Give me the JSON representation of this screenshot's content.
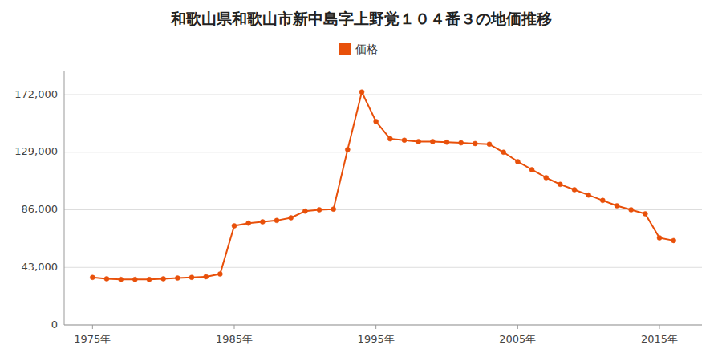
{
  "chart_data": {
    "type": "line",
    "title": "和歌山県和歌山市新中島字上野覚１０４番３の地価推移",
    "x": [
      1975,
      1976,
      1977,
      1978,
      1979,
      1980,
      1981,
      1982,
      1983,
      1984,
      1985,
      1986,
      1987,
      1988,
      1989,
      1990,
      1991,
      1992,
      1993,
      1994,
      1995,
      1996,
      1997,
      1998,
      1999,
      2000,
      2001,
      2002,
      2003,
      2004,
      2005,
      2006,
      2007,
      2008,
      2009,
      2010,
      2011,
      2012,
      2013,
      2014,
      2015,
      2016
    ],
    "series": [
      {
        "name": "価格",
        "color": "#e8500a",
        "marker": "circle",
        "values": [
          35500,
          34500,
          34000,
          34000,
          34000,
          34500,
          35000,
          35500,
          36000,
          38000,
          74000,
          76000,
          77000,
          78000,
          80000,
          85000,
          86000,
          86500,
          131000,
          174000,
          152000,
          139000,
          138000,
          137000,
          137000,
          136500,
          136000,
          135500,
          135000,
          129000,
          122000,
          116000,
          110000,
          105000,
          101000,
          97000,
          93000,
          89000,
          86000,
          83000,
          65000,
          63000
        ]
      }
    ],
    "xlim": [
      1973,
      2018
    ],
    "xticks": [
      {
        "value": 1975,
        "label": "1975年"
      },
      {
        "value": 1985,
        "label": "1985年"
      },
      {
        "value": 1995,
        "label": "1995年"
      },
      {
        "value": 2005,
        "label": "2005年"
      },
      {
        "value": 2015,
        "label": "2015年"
      }
    ],
    "ylim": [
      0,
      190000
    ],
    "yticks": [
      0,
      {
        "value": 43000,
        "label": "43,000"
      },
      {
        "value": 86000,
        "label": "86,000"
      },
      {
        "value": 129000,
        "label": "129,000"
      },
      {
        "value": 172000,
        "label": "172,000"
      }
    ],
    "grid": true,
    "legend": "top"
  }
}
